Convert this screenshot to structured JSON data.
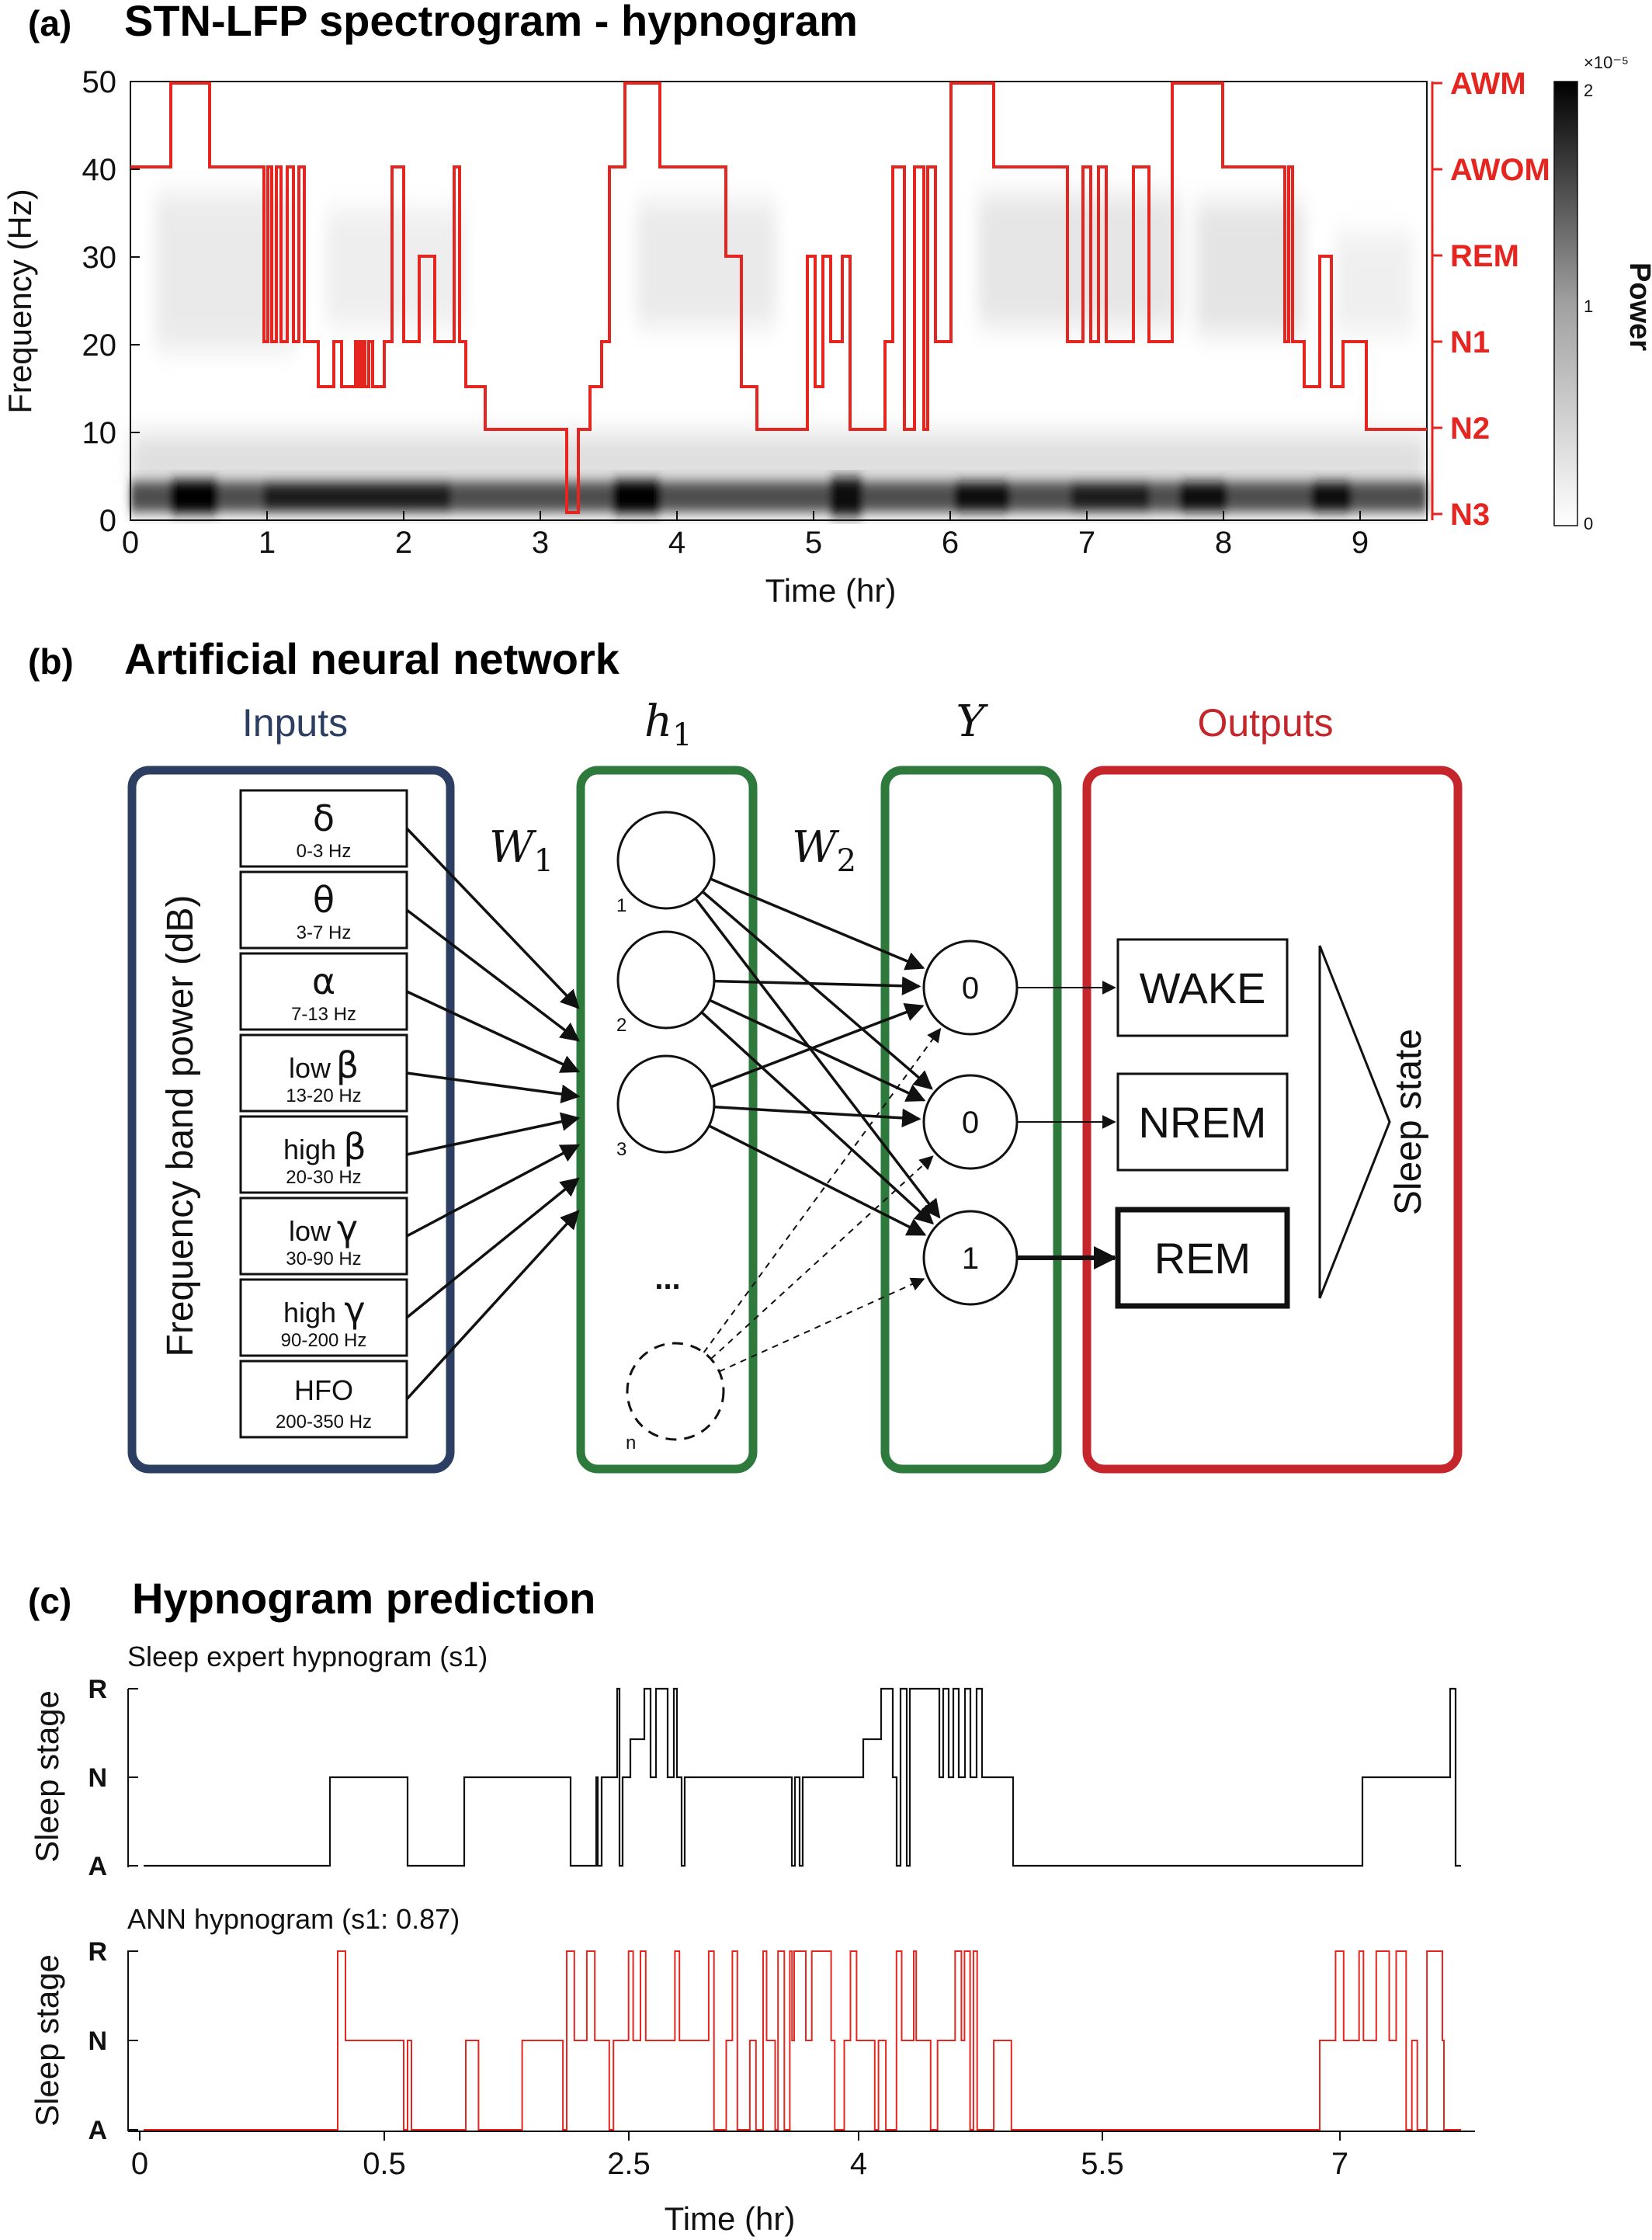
{
  "panel_a": {
    "label": "(a)",
    "title": "STN-LFP spectrogram - hypnogram",
    "ylabel": "Frequency (Hz)",
    "xlabel": "Time (hr)",
    "yticks": [
      "0",
      "10",
      "20",
      "30",
      "40",
      "50"
    ],
    "xticks": [
      "0",
      "1",
      "2",
      "3",
      "4",
      "5",
      "6",
      "7",
      "8",
      "9"
    ],
    "stages": [
      "AWM",
      "AWOM",
      "REM",
      "N1",
      "N2",
      "N3"
    ],
    "colorbar": {
      "label": "Power",
      "multiplier": "×10⁻⁵",
      "ticks": [
        "0",
        "1",
        "2"
      ]
    }
  },
  "panel_b": {
    "label": "(b)",
    "title": "Artificial neural network",
    "inputs_title": "Inputs",
    "hidden_title": "h",
    "hidden_sub": "1",
    "y_title": "Y",
    "outputs_title": "Outputs",
    "input_axis_label": "Frequency band power (dB)",
    "w1": "W",
    "w1_sub": "1",
    "w2": "W",
    "w2_sub": "2",
    "bands": [
      {
        "name": "",
        "sym": "δ",
        "range": "0-3 Hz"
      },
      {
        "name": "",
        "sym": "θ",
        "range": "3-7 Hz"
      },
      {
        "name": "",
        "sym": "α",
        "range": "7-13 Hz"
      },
      {
        "name": "low",
        "sym": "β",
        "range": "13-20 Hz"
      },
      {
        "name": "high",
        "sym": "β",
        "range": "20-30 Hz"
      },
      {
        "name": "low",
        "sym": "γ",
        "range": "30-90 Hz"
      },
      {
        "name": "high",
        "sym": "γ",
        "range": "90-200 Hz"
      },
      {
        "name": "HFO",
        "sym": "",
        "range": "200-350 Hz"
      }
    ],
    "hidden_nodes": [
      "1",
      "2",
      "3",
      "n"
    ],
    "ellipsis": "...",
    "y_nodes": [
      "0",
      "0",
      "1"
    ],
    "outputs": [
      "WAKE",
      "NREM",
      "REM"
    ],
    "result_label": "Sleep state",
    "colors": {
      "inputs": "#2d3e63",
      "hidden": "#2e7a3c",
      "outputs": "#c4262b"
    }
  },
  "panel_c": {
    "label": "(c)",
    "title": "Hypnogram prediction",
    "top_label": "Sleep expert hypnogram (s1)",
    "bottom_label": "ANN hypnogram (s1: 0.87)",
    "ylabel": "Sleep stage",
    "stages": [
      "R",
      "N",
      "A"
    ],
    "xlabel": "Time (hr)",
    "xticks": [
      "0",
      "0.5",
      "2.5",
      "4",
      "5.5",
      "7"
    ]
  }
}
